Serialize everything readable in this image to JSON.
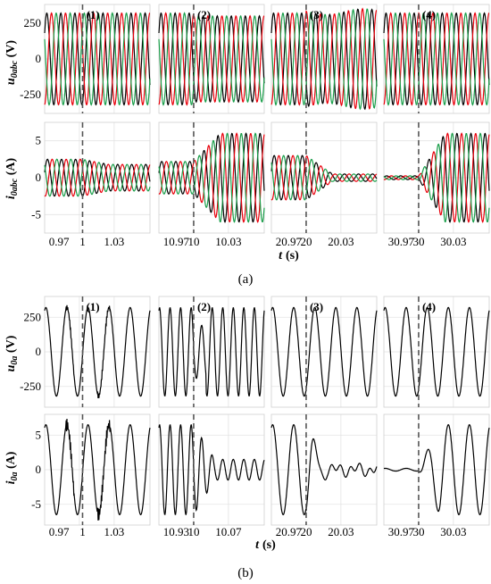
{
  "figure": {
    "caption_a": "(a)",
    "caption_b": "(b)",
    "x_label_t": "t",
    "x_label_unit": "(s)",
    "a_top_ylabel": {
      "sym": "u",
      "sub": "0abc",
      "unit": "(V)"
    },
    "a_bottom_ylabel": {
      "sym": "i",
      "sub": "0abc",
      "unit": "(A)"
    },
    "b_top_ylabel": {
      "sym": "u",
      "sub": "0a",
      "unit": "(V)"
    },
    "b_bottom_ylabel": {
      "sym": "i",
      "sub": "0a",
      "unit": "(A)"
    }
  },
  "colors": {
    "phase_a": "#000000",
    "phase_b": "#e8000b",
    "phase_c": "#1a9e4a",
    "marker": "#555555"
  },
  "chart_data": [
    {
      "id": "a-voltage",
      "type": "line",
      "ylabel": "u0abc (V)",
      "yticks": [
        -250,
        0,
        250
      ],
      "ylim": [
        -380,
        380
      ],
      "series_names": [],
      "events": [
        {
          "label": "(1)",
          "t": 1,
          "xticks": [
            "0.97",
            "1",
            "1.03"
          ],
          "xlim": [
            0.96,
            1.06
          ]
        },
        {
          "label": "(2)",
          "t": 10,
          "xticks": [
            "10.97",
            "10",
            "10.03"
          ],
          "xlim": [
            9.96,
            10.06
          ]
        },
        {
          "label": "(3)",
          "t": 20,
          "xticks": [
            "20.97",
            "20",
            "20.03"
          ],
          "xlim": [
            19.96,
            20.06
          ]
        },
        {
          "label": "(4)",
          "t": 30,
          "xticks": [
            "30.97",
            "30",
            "30.03"
          ],
          "xlim": [
            29.96,
            30.06
          ]
        }
      ],
      "amplitude_before": [
        320,
        320,
        320,
        320
      ],
      "amplitude_after": [
        320,
        300,
        330,
        320
      ]
    },
    {
      "id": "a-current",
      "type": "line",
      "ylabel": "i0abc (A)",
      "yticks": [
        -5,
        0,
        5
      ],
      "ylim": [
        -7.5,
        7.5
      ],
      "amplitude_before": [
        2.5,
        2.2,
        3.0,
        0.2
      ],
      "amplitude_after": [
        1.8,
        6.0,
        0.5,
        6.0
      ]
    },
    {
      "id": "b-voltage",
      "type": "line",
      "ylabel": "u0a (V)",
      "yticks": [
        -250,
        0,
        250
      ],
      "ylim": [
        -400,
        400
      ],
      "events": [
        {
          "label": "(1)",
          "t": 1,
          "xticks": [
            "0.97",
            "1",
            "1.03"
          ]
        },
        {
          "label": "(2)",
          "t": 10,
          "xticks": [
            "10.93",
            "10",
            "10.07"
          ]
        },
        {
          "label": "(3)",
          "t": 20,
          "xticks": [
            "20.97",
            "20",
            "20.03"
          ]
        },
        {
          "label": "(4)",
          "t": 30,
          "xticks": [
            "30.97",
            "30",
            "30.03"
          ]
        }
      ],
      "amplitude": [
        320,
        320,
        320,
        320
      ]
    },
    {
      "id": "b-current",
      "type": "line",
      "ylabel": "i0a (A)",
      "yticks": [
        -5,
        0,
        5
      ],
      "ylim": [
        -8,
        8
      ],
      "amplitude_before": [
        6.5,
        6.5,
        6.5,
        0.2
      ],
      "amplitude_after": [
        6.5,
        1.5,
        0.5,
        6.5
      ]
    }
  ]
}
